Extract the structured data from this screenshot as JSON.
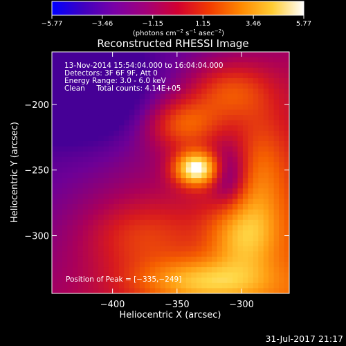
{
  "chart_data": {
    "type": "heatmap",
    "title": "Reconstructed RHESSI Image",
    "xlabel": "Heliocentric X (arcsec)",
    "ylabel": "Heliocentric Y (arcsec)",
    "xlim": [
      -447,
      -263
    ],
    "ylim": [
      -344,
      -160
    ],
    "x_ticks": [
      -400,
      -350,
      -300
    ],
    "x_tick_labels": [
      "−400",
      "−350",
      "−300"
    ],
    "y_ticks": [
      -200,
      -250,
      -300
    ],
    "y_tick_labels": [
      "−200",
      "−250",
      "−300"
    ],
    "colorbar": {
      "ticks": [
        -5.77,
        -3.46,
        -1.15,
        1.15,
        3.46,
        5.77
      ],
      "tick_labels": [
        "−5.77",
        "−3.46",
        "−1.15",
        "1.15",
        "3.46",
        "5.77"
      ],
      "range": [
        -5.77,
        5.77
      ],
      "unit_label": {
        "prefix": "(photons cm",
        "exp1": "−2",
        "mid1": " s",
        "exp2": "−1",
        "mid2": " asec",
        "exp3": "−2",
        "suffix": ")"
      },
      "colors": [
        "#0000ff",
        "#4000c0",
        "#7a00a6",
        "#a30078",
        "#d20030",
        "#f23a00",
        "#ff8800",
        "#ffcc33",
        "#ffffff"
      ]
    },
    "info_lines": [
      "13-Nov-2014 15:54:04.000 to 16:04:04.000",
      "Detectors: 3F 6F 9F, Att 0",
      "Energy Range: 3.0 - 6.0 keV",
      "Clean     Total counts: 4.14E+05"
    ],
    "peak_label": "Position of Peak = [−335,−249]",
    "peak_position": [
      -335,
      -249
    ],
    "date_stamp": "31-Jul-2017 21:17",
    "grid": false,
    "image_value_range": [
      0,
      5.77
    ]
  }
}
